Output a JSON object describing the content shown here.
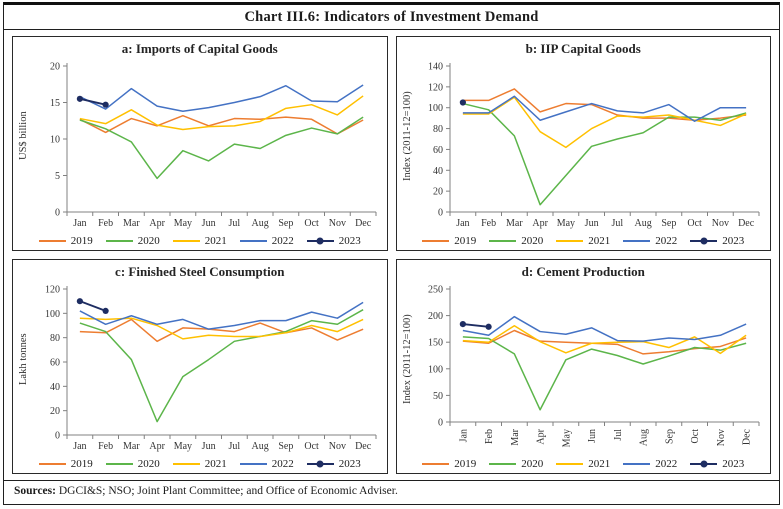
{
  "title": "Chart III.6: Indicators of Investment Demand",
  "footer": {
    "label": "Sources:",
    "text": " DGCI&S; NSO; Joint Plant Committee; and Office of Economic Adviser."
  },
  "colors": {
    "y2019": "#ED7D31",
    "y2020": "#5CB54A",
    "y2021": "#FFC000",
    "y2022": "#4472C4",
    "y2023": "#1E2D62",
    "axis": "#808080"
  },
  "chart_data": [
    {
      "id": "a",
      "type": "line",
      "title": "a: Imports of Capital Goods",
      "ylabel": "US$ billion",
      "ylim": [
        0,
        20
      ],
      "yticks": [
        0,
        5,
        10,
        15,
        20
      ],
      "x_rotated": false,
      "grid": false,
      "legend_position": "bottom",
      "categories": [
        "Jan",
        "Feb",
        "Mar",
        "Apr",
        "May",
        "Jun",
        "Jul",
        "Aug",
        "Sep",
        "Oct",
        "Nov",
        "Dec"
      ],
      "series": [
        {
          "name": "2019",
          "color": "#ED7D31",
          "marker": false,
          "values": [
            12.7,
            10.9,
            12.8,
            11.8,
            13.2,
            11.8,
            12.8,
            12.7,
            13.0,
            12.7,
            10.7,
            12.6
          ]
        },
        {
          "name": "2020",
          "color": "#5CB54A",
          "marker": false,
          "values": [
            12.6,
            11.4,
            9.6,
            4.6,
            8.4,
            7.0,
            9.3,
            8.7,
            10.5,
            11.5,
            10.7,
            13.0
          ]
        },
        {
          "name": "2021",
          "color": "#FFC000",
          "marker": false,
          "values": [
            12.8,
            12.1,
            14.0,
            11.9,
            11.3,
            11.7,
            11.8,
            12.4,
            14.2,
            14.7,
            13.3,
            15.9
          ]
        },
        {
          "name": "2022",
          "color": "#4472C4",
          "marker": false,
          "values": [
            15.8,
            14.1,
            16.9,
            14.5,
            13.8,
            14.3,
            15.0,
            15.8,
            17.3,
            15.2,
            15.1,
            17.4
          ]
        },
        {
          "name": "2023",
          "color": "#1E2D62",
          "marker": true,
          "values": [
            15.5,
            14.7,
            null,
            null,
            null,
            null,
            null,
            null,
            null,
            null,
            null,
            null
          ]
        }
      ]
    },
    {
      "id": "b",
      "type": "line",
      "title": "b: IIP Capital Goods",
      "ylabel": "Index (2011-12=100)",
      "ylim": [
        0,
        140
      ],
      "yticks": [
        0,
        20,
        40,
        60,
        80,
        100,
        120,
        140
      ],
      "x_rotated": false,
      "grid": false,
      "legend_position": "bottom",
      "categories": [
        "Jan",
        "Feb",
        "Mar",
        "Apr",
        "May",
        "Jun",
        "Jul",
        "Aug",
        "Sep",
        "Oct",
        "Nov",
        "Dec"
      ],
      "series": [
        {
          "name": "2019",
          "color": "#ED7D31",
          "marker": false,
          "values": [
            107,
            107,
            118,
            96,
            104,
            103,
            93,
            90,
            90,
            88,
            90,
            93
          ]
        },
        {
          "name": "2020",
          "color": "#5CB54A",
          "marker": false,
          "values": [
            104,
            98,
            73,
            7,
            35,
            63,
            70,
            76,
            91,
            91,
            88,
            95
          ]
        },
        {
          "name": "2021",
          "color": "#FFC000",
          "marker": false,
          "values": [
            94,
            94,
            110,
            77,
            62,
            80,
            92,
            91,
            93,
            88,
            83,
            94
          ]
        },
        {
          "name": "2022",
          "color": "#4472C4",
          "marker": false,
          "values": [
            95,
            95,
            111,
            88,
            96,
            104,
            97,
            95,
            103,
            87,
            100,
            100
          ]
        },
        {
          "name": "2023",
          "color": "#1E2D62",
          "marker": true,
          "values": [
            105,
            null,
            null,
            null,
            null,
            null,
            null,
            null,
            null,
            null,
            null,
            null
          ]
        }
      ]
    },
    {
      "id": "c",
      "type": "line",
      "title": "c: Finished Steel Consumption",
      "ylabel": "Lakh tonnes",
      "ylim": [
        0,
        120
      ],
      "yticks": [
        0,
        20,
        40,
        60,
        80,
        100,
        120
      ],
      "x_rotated": false,
      "grid": false,
      "legend_position": "bottom",
      "categories": [
        "Jan",
        "Feb",
        "Mar",
        "Apr",
        "May",
        "Jun",
        "Jul",
        "Aug",
        "Sep",
        "Oct",
        "Nov",
        "Dec"
      ],
      "series": [
        {
          "name": "2019",
          "color": "#ED7D31",
          "marker": false,
          "values": [
            85,
            84,
            95,
            77,
            88,
            87,
            85,
            92,
            84,
            88,
            78,
            87
          ]
        },
        {
          "name": "2020",
          "color": "#5CB54A",
          "marker": false,
          "values": [
            92,
            85,
            62,
            11,
            48,
            62,
            77,
            81,
            85,
            94,
            91,
            103
          ]
        },
        {
          "name": "2021",
          "color": "#FFC000",
          "marker": false,
          "values": [
            96,
            95,
            96,
            90,
            79,
            82,
            81,
            81,
            84,
            90,
            85,
            95
          ]
        },
        {
          "name": "2022",
          "color": "#4472C4",
          "marker": false,
          "values": [
            102,
            91,
            98,
            91,
            95,
            87,
            90,
            94,
            94,
            101,
            96,
            109
          ]
        },
        {
          "name": "2023",
          "color": "#1E2D62",
          "marker": true,
          "values": [
            110,
            102,
            null,
            null,
            null,
            null,
            null,
            null,
            null,
            null,
            null,
            null
          ]
        }
      ]
    },
    {
      "id": "d",
      "type": "line",
      "title": "d: Cement Production",
      "ylabel": "Index (2011-12=100)",
      "ylim": [
        0,
        250
      ],
      "yticks": [
        0,
        50,
        100,
        150,
        200,
        250
      ],
      "x_rotated": true,
      "grid": false,
      "legend_position": "bottom",
      "categories": [
        "Jan",
        "Feb",
        "Mar",
        "Apr",
        "May",
        "Jun",
        "Jul",
        "Aug",
        "Sep",
        "Oct",
        "Nov",
        "Dec"
      ],
      "series": [
        {
          "name": "2019",
          "color": "#ED7D31",
          "marker": false,
          "values": [
            152,
            148,
            172,
            152,
            150,
            148,
            146,
            128,
            132,
            138,
            142,
            158
          ]
        },
        {
          "name": "2020",
          "color": "#5CB54A",
          "marker": false,
          "values": [
            160,
            157,
            128,
            23,
            117,
            137,
            125,
            109,
            124,
            140,
            135,
            148
          ]
        },
        {
          "name": "2021",
          "color": "#FFC000",
          "marker": false,
          "values": [
            153,
            150,
            181,
            151,
            130,
            148,
            150,
            151,
            140,
            160,
            129,
            163
          ]
        },
        {
          "name": "2022",
          "color": "#4472C4",
          "marker": false,
          "values": [
            172,
            163,
            198,
            170,
            165,
            177,
            153,
            152,
            158,
            155,
            163,
            184
          ]
        },
        {
          "name": "2023",
          "color": "#1E2D62",
          "marker": true,
          "values": [
            184,
            179,
            null,
            null,
            null,
            null,
            null,
            null,
            null,
            null,
            null,
            null
          ]
        }
      ]
    }
  ]
}
